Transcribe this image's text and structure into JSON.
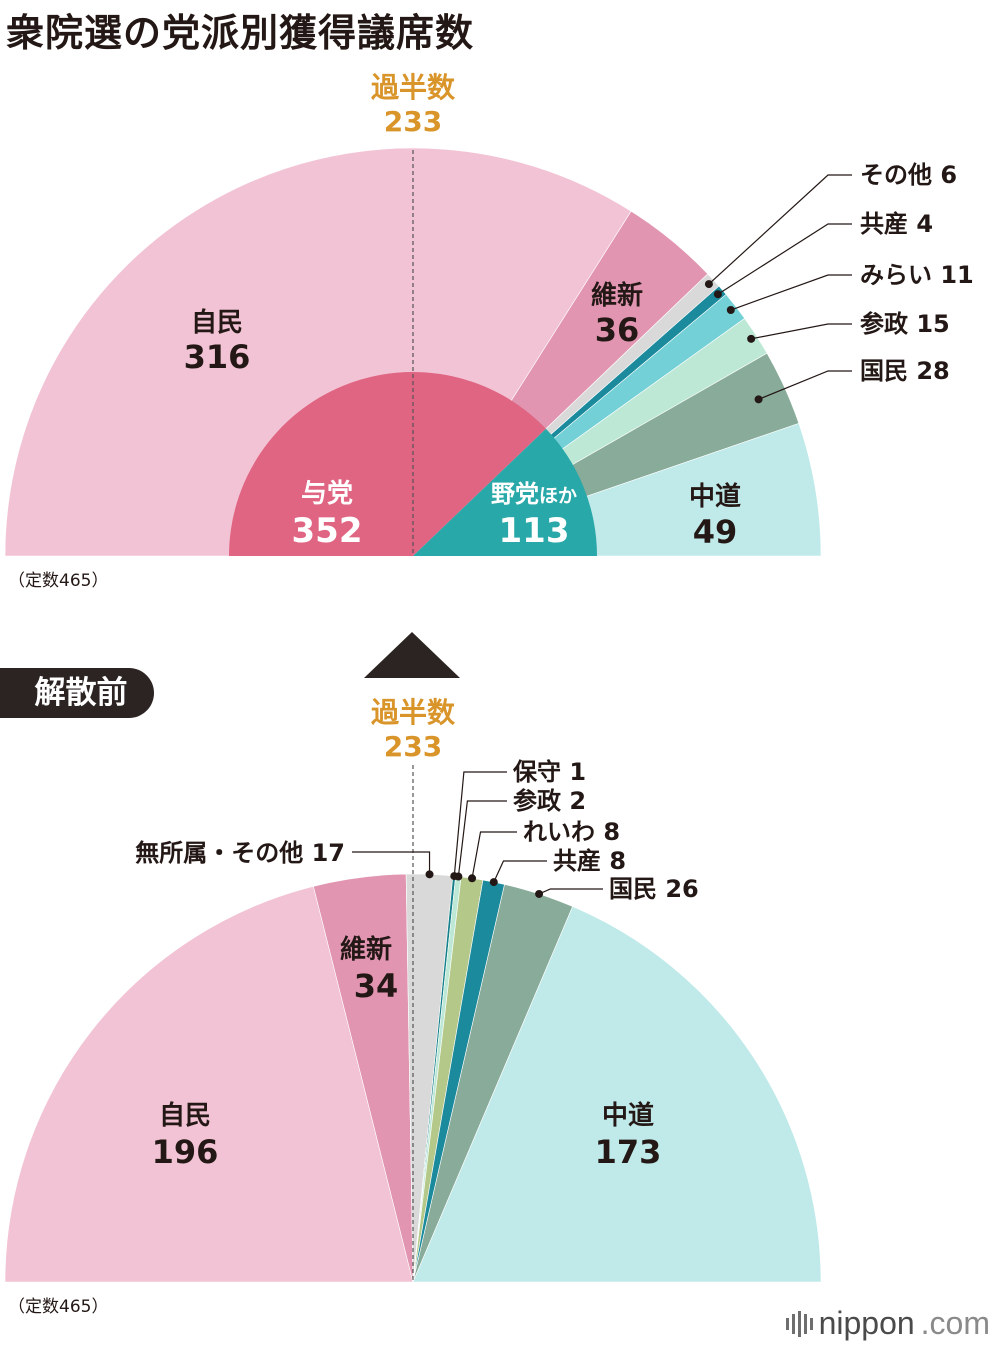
{
  "title": "衆院選の党派別獲得議席数",
  "logo": {
    "brand": "nippon",
    "tld": ".com"
  },
  "colors": {
    "ldp": "#f2c3d4",
    "ishin": "#e195b1",
    "other": "#d9d9d9",
    "jcp": "#1b8a9c",
    "mirai": "#73d0d6",
    "sansei": "#bde8d6",
    "dpfp": "#88ab9a",
    "chudo": "#bfeae9",
    "ruling": "#e06583",
    "opposition": "#28a8a8",
    "majority": "#d9942a",
    "reiwa": "#b4c88a",
    "hoshu": "#16808a",
    "text": "#231815"
  },
  "chart_data": [
    {
      "type": "pie",
      "variant": "semicircle",
      "panel": "after-election",
      "title": "衆院選の党派別獲得議席数",
      "total_label": "（定数465）",
      "total": 465,
      "majority": {
        "label": "過半数",
        "value": "233"
      },
      "outer": [
        {
          "name": "自民",
          "value": 316,
          "color_key": "ldp",
          "label": "自民",
          "value_text": "316"
        },
        {
          "name": "維新",
          "value": 36,
          "color_key": "ishin",
          "label": "維新",
          "value_text": "36"
        },
        {
          "name": "その他",
          "value": 6,
          "color_key": "other",
          "label": "その他 6"
        },
        {
          "name": "共産",
          "value": 4,
          "color_key": "jcp",
          "label": "共産 4"
        },
        {
          "name": "みらい",
          "value": 11,
          "color_key": "mirai",
          "label": "みらい 11"
        },
        {
          "name": "参政",
          "value": 15,
          "color_key": "sansei",
          "label": "参政 15"
        },
        {
          "name": "国民",
          "value": 28,
          "color_key": "dpfp",
          "label": "国民 28"
        },
        {
          "name": "中道",
          "value": 49,
          "color_key": "chudo",
          "label": "中道",
          "value_text": "49"
        }
      ],
      "inner": [
        {
          "name": "与党",
          "value": 352,
          "color_key": "ruling",
          "label": "与党",
          "value_text": "352"
        },
        {
          "name": "野党ほか",
          "value": 113,
          "color_key": "opposition",
          "label": "野党",
          "label_small": "ほか",
          "value_text": "113"
        }
      ]
    },
    {
      "type": "pie",
      "variant": "semicircle",
      "panel": "before-dissolution",
      "title": "解散前",
      "total_label": "（定数465）",
      "total": 465,
      "majority": {
        "label": "過半数",
        "value": "233"
      },
      "outer": [
        {
          "name": "自民",
          "value": 196,
          "color_key": "ldp",
          "label": "自民",
          "value_text": "196"
        },
        {
          "name": "維新",
          "value": 34,
          "color_key": "ishin",
          "label": "維新",
          "value_text": "34"
        },
        {
          "name": "無所属・その他",
          "value": 17,
          "color_key": "other",
          "label": "無所属・その他 17"
        },
        {
          "name": "保守",
          "value": 1,
          "color_key": "hoshu",
          "label": "保守 1"
        },
        {
          "name": "参政",
          "value": 2,
          "color_key": "sansei",
          "label": "参政 2"
        },
        {
          "name": "れいわ",
          "value": 8,
          "color_key": "reiwa",
          "label": "れいわ 8"
        },
        {
          "name": "共産",
          "value": 8,
          "color_key": "jcp",
          "label": "共産 8"
        },
        {
          "name": "国民",
          "value": 26,
          "color_key": "dpfp",
          "label": "国民 26"
        },
        {
          "name": "中道",
          "value": 173,
          "color_key": "chudo",
          "label": "中道",
          "value_text": "173"
        }
      ]
    }
  ]
}
